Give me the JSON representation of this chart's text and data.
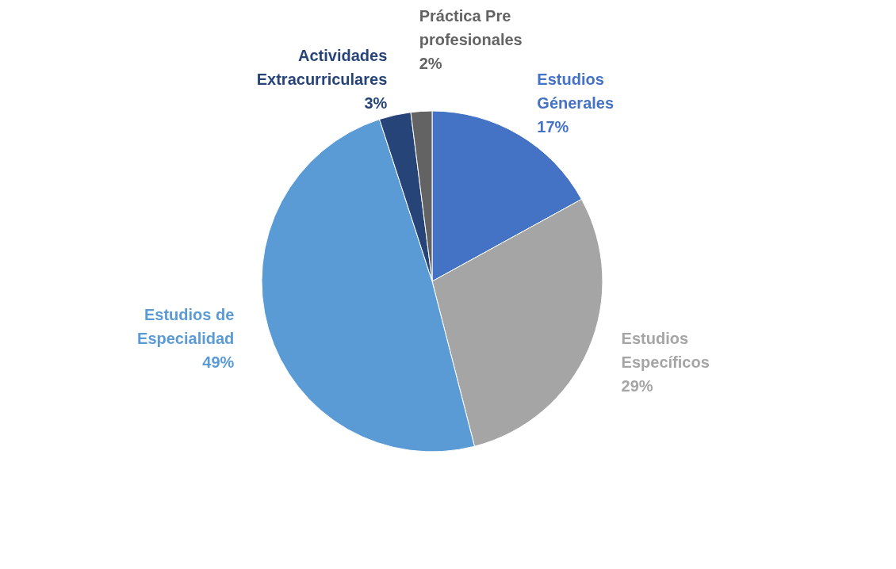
{
  "chart_data": {
    "type": "pie",
    "categories": [
      "Estudios Génerales",
      "Estudios Específicos",
      "Estudios de Especialidad",
      "Actividades Extracurriculares",
      "Práctica Pre profesionales"
    ],
    "values": [
      17,
      29,
      49,
      3,
      2
    ],
    "value_labels": [
      "17%",
      "29%",
      "49%",
      "3%",
      "2%"
    ],
    "colors": [
      "#4472c4",
      "#a5a5a5",
      "#5b9bd5",
      "#264478",
      "#636363"
    ],
    "legend": false
  }
}
